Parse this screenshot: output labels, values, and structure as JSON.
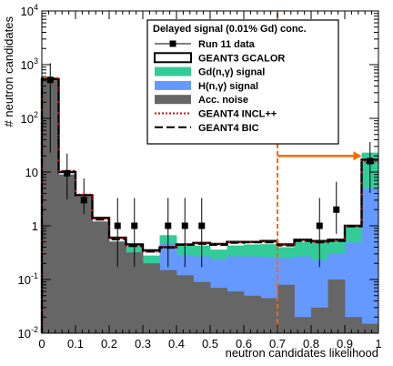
{
  "chart_data": {
    "type": "bar",
    "xlabel": "neutron candidates likelihood",
    "ylabel": "# neutron candidates",
    "xlim": [
      0,
      1
    ],
    "ylim": [
      0.01,
      10000
    ],
    "log_y": true,
    "x_ticks": [
      "0",
      "0.1",
      "0.2",
      "0.3",
      "0.4",
      "0.5",
      "0.6",
      "0.7",
      "0.8",
      "0.9",
      "1"
    ],
    "y_ticks": [
      {
        "base": "10",
        "exp": "-2",
        "value": 0.01
      },
      {
        "base": "10",
        "exp": "-1",
        "value": 0.1
      },
      {
        "base": "1",
        "exp": "",
        "value": 1
      },
      {
        "base": "10",
        "exp": "",
        "value": 10
      },
      {
        "base": "10",
        "exp": "2",
        "value": 100
      },
      {
        "base": "10",
        "exp": "3",
        "value": 1000
      },
      {
        "base": "10",
        "exp": "4",
        "value": 10000
      }
    ],
    "bin_edges": [
      0,
      0.05,
      0.1,
      0.15,
      0.2,
      0.25,
      0.3,
      0.35,
      0.4,
      0.45,
      0.5,
      0.55,
      0.6,
      0.65,
      0.7,
      0.75,
      0.8,
      0.85,
      0.9,
      0.95,
      1.0
    ],
    "legend_placement": "top-right",
    "legend_title": "Delayed signal (0.01% Gd) conc.",
    "stack": [
      {
        "name": "Acc. noise",
        "color": "#666666",
        "values": [
          520,
          9,
          3.5,
          1.2,
          0.5,
          0.32,
          0.2,
          0.15,
          0.12,
          0.09,
          0.07,
          0.06,
          0.05,
          0.045,
          0.08,
          0.02,
          0.03,
          0.1,
          0.02,
          0.015
        ]
      },
      {
        "name": "H(n,γ) signal",
        "color": "#6699ff",
        "values": [
          0,
          0,
          0,
          0,
          0,
          0,
          0,
          0.32,
          0.17,
          0.18,
          0.17,
          0.21,
          0.22,
          0.22,
          0.17,
          0.25,
          0.2,
          0.2,
          0.47,
          5.0
        ]
      },
      {
        "name": "Gd(n,γ) signal",
        "color": "#33cc99",
        "values": [
          0,
          0,
          0,
          0,
          0.02,
          0.1,
          0.08,
          0.2,
          0.15,
          0.16,
          0.12,
          0.16,
          0.18,
          0.19,
          0.15,
          0.23,
          0.27,
          0.25,
          0.5,
          18.0
        ]
      }
    ],
    "mc_lines": [
      {
        "name": "GEANT3 GCALOR",
        "color": "#000000",
        "style": "box",
        "values": [
          540,
          10,
          3.7,
          1.4,
          0.6,
          0.45,
          0.35,
          0.4,
          0.45,
          0.48,
          0.46,
          0.5,
          0.5,
          0.52,
          0.45,
          0.55,
          0.52,
          0.55,
          1.0,
          17
        ]
      },
      {
        "name": "GEANT4 INCL++",
        "color": "#dd0000",
        "style": "dotted",
        "values": [
          560,
          10.5,
          3.8,
          1.35,
          0.58,
          0.42,
          0.33,
          0.4,
          0.45,
          0.47,
          0.45,
          0.49,
          0.5,
          0.5,
          0.44,
          0.53,
          0.5,
          0.53,
          0.98,
          16
        ]
      },
      {
        "name": "GEANT4 BIC",
        "color": "#000000",
        "style": "dashed",
        "values": [
          550,
          10.2,
          3.7,
          1.3,
          0.56,
          0.42,
          0.33,
          0.39,
          0.44,
          0.46,
          0.44,
          0.48,
          0.49,
          0.49,
          0.43,
          0.52,
          0.49,
          0.52,
          0.97,
          15
        ]
      }
    ],
    "data_series": {
      "name": "Run 11 data",
      "x": [
        0.025,
        0.075,
        0.125,
        0.225,
        0.275,
        0.375,
        0.425,
        0.475,
        0.825,
        0.875,
        0.975
      ],
      "y": [
        520,
        9.5,
        3.0,
        1.0,
        1.0,
        1.0,
        1.0,
        1.0,
        1.0,
        2.0,
        16
      ],
      "err_lo": [
        497,
        6.4,
        1.35,
        0.83,
        0.83,
        0.83,
        0.83,
        0.83,
        0.83,
        1.29,
        11.9
      ],
      "err_hi": [
        543,
        12.6,
        4.65,
        2.3,
        2.3,
        2.3,
        2.3,
        2.3,
        2.3,
        4.6,
        20.1
      ]
    },
    "cut_line": {
      "x": 0.7,
      "color": "#ff6600"
    },
    "arrow": {
      "from_x": 0.7,
      "to_x": 0.95,
      "y": 20,
      "color": "#ff6600"
    }
  }
}
